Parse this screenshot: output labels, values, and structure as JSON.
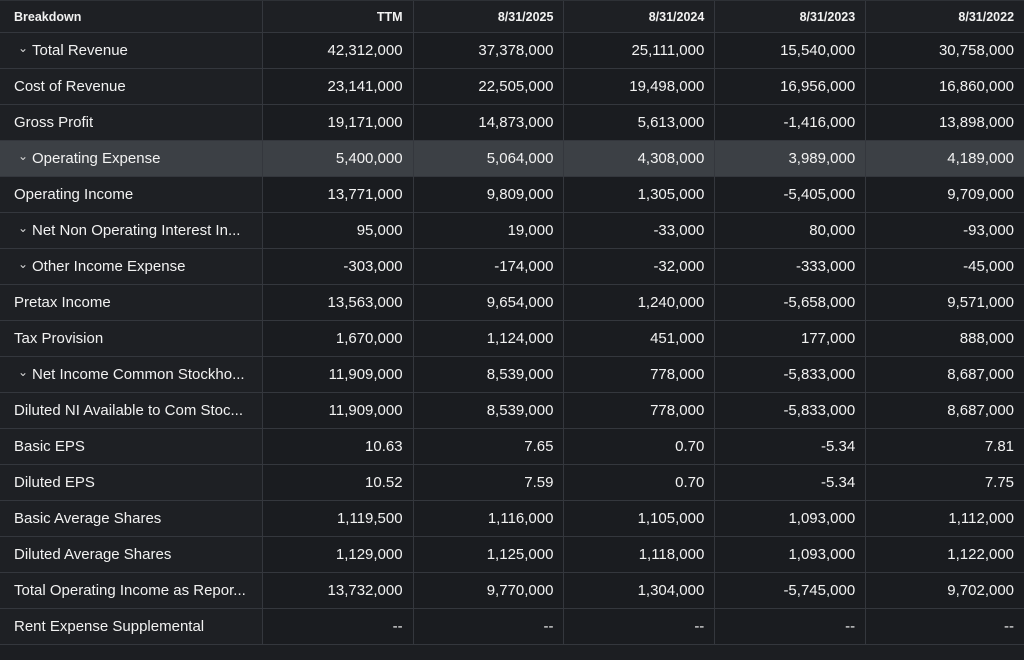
{
  "columns": [
    "Breakdown",
    "TTM",
    "8/31/2025",
    "8/31/2024",
    "8/31/2023",
    "8/31/2022"
  ],
  "rows": [
    {
      "label": "Total Revenue",
      "expandable": true,
      "values": [
        "42,312,000",
        "37,378,000",
        "25,111,000",
        "15,540,000",
        "30,758,000"
      ]
    },
    {
      "label": "Cost of Revenue",
      "expandable": false,
      "values": [
        "23,141,000",
        "22,505,000",
        "19,498,000",
        "16,956,000",
        "16,860,000"
      ]
    },
    {
      "label": "Gross Profit",
      "expandable": false,
      "values": [
        "19,171,000",
        "14,873,000",
        "5,613,000",
        "-1,416,000",
        "13,898,000"
      ]
    },
    {
      "label": "Operating Expense",
      "expandable": true,
      "highlighted": true,
      "values": [
        "5,400,000",
        "5,064,000",
        "4,308,000",
        "3,989,000",
        "4,189,000"
      ]
    },
    {
      "label": "Operating Income",
      "expandable": false,
      "values": [
        "13,771,000",
        "9,809,000",
        "1,305,000",
        "-5,405,000",
        "9,709,000"
      ]
    },
    {
      "label": "Net Non Operating Interest In...",
      "expandable": true,
      "values": [
        "95,000",
        "19,000",
        "-33,000",
        "80,000",
        "-93,000"
      ]
    },
    {
      "label": "Other Income Expense",
      "expandable": true,
      "values": [
        "-303,000",
        "-174,000",
        "-32,000",
        "-333,000",
        "-45,000"
      ]
    },
    {
      "label": "Pretax Income",
      "expandable": false,
      "values": [
        "13,563,000",
        "9,654,000",
        "1,240,000",
        "-5,658,000",
        "9,571,000"
      ]
    },
    {
      "label": "Tax Provision",
      "expandable": false,
      "values": [
        "1,670,000",
        "1,124,000",
        "451,000",
        "177,000",
        "888,000"
      ]
    },
    {
      "label": "Net Income Common Stockho...",
      "expandable": true,
      "values": [
        "11,909,000",
        "8,539,000",
        "778,000",
        "-5,833,000",
        "8,687,000"
      ]
    },
    {
      "label": "Diluted NI Available to Com Stoc...",
      "expandable": false,
      "values": [
        "11,909,000",
        "8,539,000",
        "778,000",
        "-5,833,000",
        "8,687,000"
      ]
    },
    {
      "label": "Basic EPS",
      "expandable": false,
      "values": [
        "10.63",
        "7.65",
        "0.70",
        "-5.34",
        "7.81"
      ]
    },
    {
      "label": "Diluted EPS",
      "expandable": false,
      "values": [
        "10.52",
        "7.59",
        "0.70",
        "-5.34",
        "7.75"
      ]
    },
    {
      "label": "Basic Average Shares",
      "expandable": false,
      "values": [
        "1,119,500",
        "1,116,000",
        "1,105,000",
        "1,093,000",
        "1,112,000"
      ]
    },
    {
      "label": "Diluted Average Shares",
      "expandable": false,
      "values": [
        "1,129,000",
        "1,125,000",
        "1,118,000",
        "1,093,000",
        "1,122,000"
      ]
    },
    {
      "label": "Total Operating Income as Repor...",
      "expandable": false,
      "values": [
        "13,732,000",
        "9,770,000",
        "1,304,000",
        "-5,745,000",
        "9,702,000"
      ]
    },
    {
      "label": "Rent Expense Supplemental",
      "expandable": false,
      "values": [
        "--",
        "--",
        "--",
        "--",
        "--"
      ]
    }
  ],
  "chevron_icon": "chevron-down-icon"
}
